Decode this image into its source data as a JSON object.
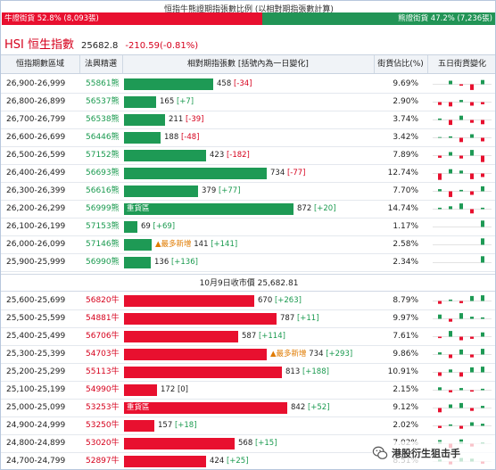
{
  "ratio": {
    "title": "恒指牛熊證期指張數比例 (以相對期指張數計算)",
    "bull_label": "牛證街貨 52.8% (8,093張)",
    "bear_label": "熊證街貨 47.2% (7,236張)",
    "bull_pct": 52.8,
    "bear_pct": 47.2
  },
  "hsi": {
    "name": "HSI 恒生指數",
    "value": "25682.8",
    "change": "-210.59(-0.81%)"
  },
  "header": {
    "range": "恒指期數區域",
    "code": "法興精選",
    "contracts": "相對期指張數 [括號內為一日變化]",
    "pct": "街貨佔比(%)",
    "spark": "五日街貨變化"
  },
  "divider": "10月9日收市價 25,682.81",
  "max_contracts": 872,
  "bear_rows": [
    {
      "range": "26,900-26,999",
      "code": "55861熊",
      "contracts": 458,
      "count": "458",
      "change": "[-34]",
      "dir": "neg",
      "pct": "9.69%",
      "tag": "",
      "spark": [
        0,
        0.5,
        -0.2,
        -0.8,
        0.6
      ]
    },
    {
      "range": "26,800-26,899",
      "code": "56537熊",
      "contracts": 165,
      "count": "165",
      "change": "[+7]",
      "dir": "pos",
      "pct": "2.90%",
      "tag": "",
      "spark": [
        -0.4,
        -0.6,
        0.3,
        -0.5,
        -0.3
      ]
    },
    {
      "range": "26,700-26,799",
      "code": "56538熊",
      "contracts": 211,
      "count": "211",
      "change": "[-39]",
      "dir": "neg",
      "pct": "3.74%",
      "tag": "",
      "spark": [
        0.2,
        -0.7,
        0.6,
        -0.4,
        -0.6
      ]
    },
    {
      "range": "26,600-26,699",
      "code": "56446熊",
      "contracts": 188,
      "count": "188",
      "change": "[-48]",
      "dir": "neg",
      "pct": "3.42%",
      "tag": "",
      "spark": [
        0.1,
        0.2,
        -0.6,
        0.5,
        -0.5
      ]
    },
    {
      "range": "26,500-26,599",
      "code": "57152熊",
      "contracts": 423,
      "count": "423",
      "change": "[-182]",
      "dir": "neg",
      "pct": "7.89%",
      "tag": "",
      "spark": [
        -0.3,
        0.5,
        -0.4,
        0.8,
        -0.9
      ]
    },
    {
      "range": "26,400-26,499",
      "code": "56693熊",
      "contracts": 734,
      "count": "734",
      "change": "[-77]",
      "dir": "neg",
      "pct": "12.74%",
      "tag": "",
      "spark": [
        -0.9,
        0.6,
        0.4,
        -0.8,
        -0.5
      ]
    },
    {
      "range": "26,300-26,399",
      "code": "56616熊",
      "contracts": 379,
      "count": "379",
      "change": "[+77]",
      "dir": "pos",
      "pct": "7.70%",
      "tag": "",
      "spark": [
        0.3,
        -0.8,
        0.2,
        -0.5,
        0.7
      ]
    },
    {
      "range": "26,200-26,299",
      "code": "56999熊",
      "contracts": 872,
      "count": "872",
      "change": "[+20]",
      "dir": "pos",
      "pct": "14.74%",
      "tag": "重貨區",
      "spark": [
        0.2,
        0.4,
        0.8,
        -0.6,
        0.2
      ]
    },
    {
      "range": "26,100-26,199",
      "code": "57153熊",
      "contracts": 69,
      "count": "69",
      "change": "[+69]",
      "dir": "pos",
      "pct": "1.17%",
      "tag": "",
      "spark": [
        0,
        0,
        0,
        0,
        0.9
      ]
    },
    {
      "range": "26,000-26,099",
      "code": "57146熊",
      "contracts": 141,
      "count": "141",
      "change": "[+141]",
      "dir": "pos",
      "pct": "2.58%",
      "tag": "▲最多新增",
      "spark": [
        0,
        0,
        0,
        0,
        0.9
      ]
    },
    {
      "range": "25,900-25,999",
      "code": "56990熊",
      "contracts": 136,
      "count": "136",
      "change": "[+136]",
      "dir": "pos",
      "pct": "2.34%",
      "tag": "",
      "spark": [
        0,
        0,
        0,
        0,
        0.9
      ]
    }
  ],
  "bull_rows": [
    {
      "range": "25,600-25,699",
      "code": "56820牛",
      "contracts": 670,
      "count": "670",
      "change": "[+263]",
      "dir": "pos",
      "pct": "8.79%",
      "tag": "",
      "spark": [
        -0.4,
        0.2,
        -0.3,
        0.7,
        0.8
      ]
    },
    {
      "range": "25,500-25,599",
      "code": "54881牛",
      "contracts": 787,
      "count": "787",
      "change": "[+11]",
      "dir": "pos",
      "pct": "9.97%",
      "tag": "",
      "spark": [
        0.6,
        -0.4,
        0.8,
        0.3,
        0.2
      ]
    },
    {
      "range": "25,400-25,499",
      "code": "56706牛",
      "contracts": 587,
      "count": "587",
      "change": "[+114]",
      "dir": "pos",
      "pct": "7.61%",
      "tag": "",
      "spark": [
        -0.2,
        0.8,
        -0.5,
        -0.3,
        0.6
      ]
    },
    {
      "range": "25,300-25,399",
      "code": "54703牛",
      "contracts": 734,
      "count": "734",
      "change": "[+293]",
      "dir": "pos",
      "pct": "9.86%",
      "tag": "▲最多新增",
      "spark": [
        0.3,
        -0.5,
        0.7,
        -0.4,
        0.8
      ]
    },
    {
      "range": "25,200-25,299",
      "code": "55113牛",
      "contracts": 813,
      "count": "813",
      "change": "[+188]",
      "dir": "pos",
      "pct": "10.91%",
      "tag": "",
      "spark": [
        -0.5,
        0.4,
        -0.6,
        0.7,
        0.8
      ]
    },
    {
      "range": "25,100-25,199",
      "code": "54990牛",
      "contracts": 172,
      "count": "172",
      "change": "[0]",
      "dir": "zero",
      "pct": "2.15%",
      "tag": "",
      "spark": [
        0.4,
        -0.3,
        0.3,
        -0.2,
        0.2
      ]
    },
    {
      "range": "25,000-25,099",
      "code": "53253牛",
      "contracts": 842,
      "count": "842",
      "change": "[+52]",
      "dir": "pos",
      "pct": "9.12%",
      "tag": "重貨區",
      "spark": [
        -0.6,
        0.5,
        0.7,
        -0.4,
        0.3
      ]
    },
    {
      "range": "24,900-24,999",
      "code": "53250牛",
      "contracts": 157,
      "count": "157",
      "change": "[+18]",
      "dir": "pos",
      "pct": "2.02%",
      "tag": "",
      "spark": [
        -0.3,
        0.2,
        -0.4,
        0.5,
        0.3
      ]
    },
    {
      "range": "24,800-24,899",
      "code": "53020牛",
      "contracts": 568,
      "count": "568",
      "change": "[+15]",
      "dir": "pos",
      "pct": "7.02%",
      "tag": "",
      "spark": [
        0.5,
        -0.6,
        0.6,
        -0.4,
        0.2
      ]
    },
    {
      "range": "24,700-24,799",
      "code": "52897牛",
      "contracts": 424,
      "count": "424",
      "change": "[+25]",
      "dir": "pos",
      "pct": "8.51%",
      "tag": "",
      "spark": [
        0.3,
        -0.4,
        0.5,
        0.4,
        -0.3
      ]
    }
  ],
  "watermark": "港股衍生狙击手",
  "colors": {
    "bull": "#e8102f",
    "bear": "#1e9a55",
    "pos_change": "#1a9a4f",
    "neg_change": "#d6001c",
    "new_tag": "#e07b00"
  },
  "icons": {
    "watermark_icon": "wechat-logo-icon"
  }
}
